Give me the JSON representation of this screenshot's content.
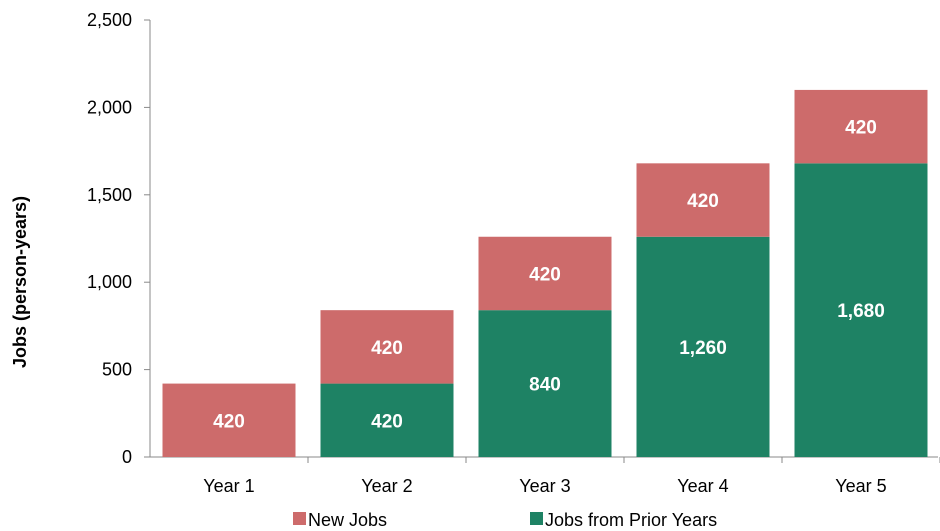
{
  "chart_data": {
    "type": "bar",
    "stacked": true,
    "categories": [
      "Year 1",
      "Year 2",
      "Year 3",
      "Year 4",
      "Year 5"
    ],
    "series": [
      {
        "name": "Jobs from Prior Years",
        "values": [
          0,
          420,
          840,
          1260,
          1680
        ],
        "labels": [
          "",
          "420",
          "840",
          "1,260",
          "1,680"
        ],
        "color": "#1e8264"
      },
      {
        "name": "New Jobs",
        "values": [
          420,
          420,
          420,
          420,
          420
        ],
        "labels": [
          "420",
          "420",
          "420",
          "420",
          "420"
        ],
        "color": "#cd6b6b"
      }
    ],
    "ylabel": "Jobs (person-years)",
    "xlabel": "",
    "title": "",
    "ylim": [
      0,
      2500
    ],
    "yticks": [
      0,
      500,
      1000,
      1500,
      2000,
      2500
    ],
    "ytick_labels": [
      "0",
      "500",
      "1,000",
      "1,500",
      "2,000",
      "2,500"
    ],
    "grid": false,
    "legend": {
      "position": "bottom",
      "order": [
        "New Jobs",
        "Jobs from Prior Years"
      ]
    }
  }
}
